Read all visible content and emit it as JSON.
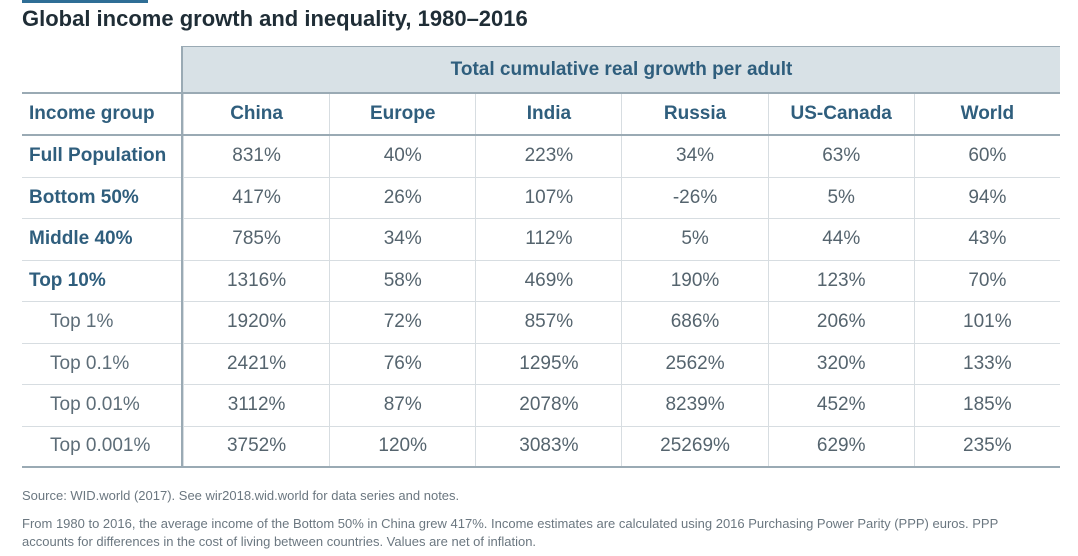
{
  "title": "Global income growth and inequality, 1980–2016",
  "chart_data": {
    "type": "table",
    "group_header": "Total cumulative real growth per adult",
    "columns": [
      "Income group",
      "China",
      "Europe",
      "India",
      "Russia",
      "US-Canada",
      "World"
    ],
    "rows": [
      {
        "label": "Full Population",
        "values": [
          "831%",
          "40%",
          "223%",
          "34%",
          "63%",
          "60%"
        ]
      },
      {
        "label": "Bottom 50%",
        "values": [
          "417%",
          "26%",
          "107%",
          "-26%",
          "5%",
          "94%"
        ]
      },
      {
        "label": "Middle 40%",
        "values": [
          "785%",
          "34%",
          "112%",
          "5%",
          "44%",
          "43%"
        ]
      },
      {
        "label": "Top 10%",
        "values": [
          "1316%",
          "58%",
          "469%",
          "190%",
          "123%",
          "70%"
        ]
      },
      {
        "label": "Top 1%",
        "values": [
          "1920%",
          "72%",
          "857%",
          "686%",
          "206%",
          "101%"
        ]
      },
      {
        "label": "Top 0.1%",
        "values": [
          "2421%",
          "76%",
          "1295%",
          "2562%",
          "320%",
          "133%"
        ]
      },
      {
        "label": "Top 0.01%",
        "values": [
          "3112%",
          "87%",
          "2078%",
          "8239%",
          "452%",
          "185%"
        ]
      },
      {
        "label": "Top 0.001%",
        "values": [
          "3752%",
          "120%",
          "3083%",
          "25269%",
          "629%",
          "235%"
        ]
      }
    ]
  },
  "source": "Source: WID.world (2017). See wir2018.wid.world for data series and notes.",
  "note": "From 1980 to 2016, the average income of the Bottom 50% in China grew 417%. Income estimates are calculated using 2016 Purchasing Power Parity (PPP) euros. PPP accounts for differences in the cost of living between countries. Values are net of inflation."
}
